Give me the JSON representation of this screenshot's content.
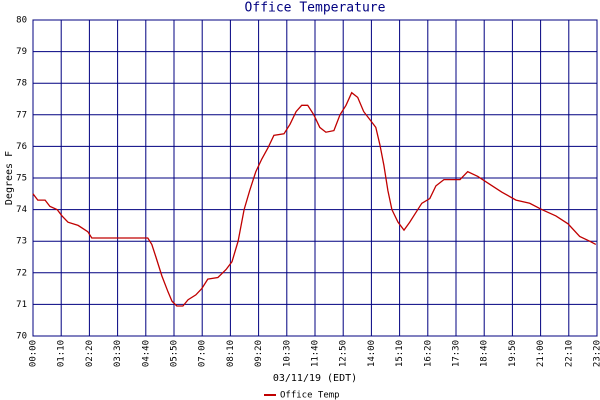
{
  "chart_data": {
    "type": "line",
    "title": "Office Temperature",
    "x_label": "03/11/19 (EDT)",
    "y_label": "Degrees F",
    "x": [
      0,
      12,
      30,
      42,
      60,
      72,
      87,
      112,
      136,
      146,
      166,
      285,
      295,
      305,
      320,
      335,
      345,
      357,
      372,
      385,
      404,
      419,
      434,
      459,
      479,
      494,
      509,
      524,
      538,
      553,
      568,
      583,
      598,
      623,
      638,
      653,
      667,
      682,
      697,
      712,
      727,
      747,
      762,
      777,
      791,
      806,
      821,
      836,
      851,
      861,
      871,
      881,
      891,
      906,
      921,
      935,
      950,
      965,
      985,
      1000,
      1020,
      1060,
      1079,
      1104,
      1134,
      1164,
      1199,
      1233,
      1263,
      1298,
      1328,
      1357,
      1382,
      1397
    ],
    "series": [
      {
        "name": "Office Temp",
        "color": "#c00000",
        "values": [
          74.5,
          74.3,
          74.3,
          74.1,
          74.0,
          73.8,
          73.6,
          73.5,
          73.3,
          73.1,
          73.1,
          73.1,
          72.9,
          72.5,
          71.9,
          71.4,
          71.1,
          70.95,
          70.95,
          71.15,
          71.3,
          71.5,
          71.8,
          71.85,
          72.1,
          72.35,
          73.0,
          74.0,
          74.6,
          75.2,
          75.6,
          75.95,
          76.35,
          76.4,
          76.7,
          77.1,
          77.3,
          77.3,
          77.0,
          76.6,
          76.45,
          76.5,
          77.0,
          77.3,
          77.7,
          77.55,
          77.1,
          76.85,
          76.6,
          76.05,
          75.4,
          74.6,
          74.0,
          73.6,
          73.35,
          73.6,
          73.9,
          74.2,
          74.35,
          74.75,
          74.95,
          74.95,
          75.2,
          75.05,
          74.8,
          74.55,
          74.3,
          74.2,
          74.0,
          73.8,
          73.55,
          73.15,
          73.0,
          72.9
        ]
      }
    ],
    "xlim": [
      0,
      1400
    ],
    "xticks": [
      {
        "value": 0,
        "label": "00:00"
      },
      {
        "value": 70,
        "label": "01:10"
      },
      {
        "value": 140,
        "label": "02:20"
      },
      {
        "value": 210,
        "label": "03:30"
      },
      {
        "value": 280,
        "label": "04:40"
      },
      {
        "value": 350,
        "label": "05:50"
      },
      {
        "value": 420,
        "label": "07:00"
      },
      {
        "value": 490,
        "label": "08:10"
      },
      {
        "value": 560,
        "label": "09:20"
      },
      {
        "value": 630,
        "label": "10:30"
      },
      {
        "value": 700,
        "label": "11:40"
      },
      {
        "value": 770,
        "label": "12:50"
      },
      {
        "value": 840,
        "label": "14:00"
      },
      {
        "value": 910,
        "label": "15:10"
      },
      {
        "value": 980,
        "label": "16:20"
      },
      {
        "value": 1050,
        "label": "17:30"
      },
      {
        "value": 1120,
        "label": "18:40"
      },
      {
        "value": 1190,
        "label": "19:50"
      },
      {
        "value": 1260,
        "label": "21:00"
      },
      {
        "value": 1330,
        "label": "22:10"
      },
      {
        "value": 1400,
        "label": "23:20"
      }
    ],
    "ylim": [
      70,
      80
    ],
    "yticks": [
      70,
      71,
      72,
      73,
      74,
      75,
      76,
      77,
      78,
      79,
      80
    ],
    "grid": true,
    "grid_color": "#000080"
  }
}
